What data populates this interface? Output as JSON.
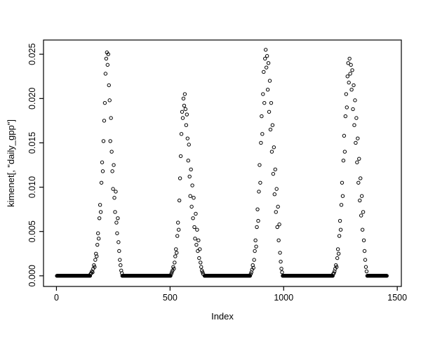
{
  "figure": {
    "background": "#ffffff",
    "foreground": "#000000"
  },
  "chart_data": {
    "type": "scatter",
    "title": "",
    "xlabel": "Index",
    "ylabel": "kimenet[, \"daily_gpp\"]",
    "marker": "open-circle",
    "grid": false,
    "legend": "none",
    "xlim": [
      -57,
      1518
    ],
    "ylim": [
      -0.0012,
      0.0266
    ],
    "x_ticks": [
      0,
      500,
      1000,
      1500
    ],
    "x_tick_labels": [
      "0",
      "500",
      "1000",
      "1500"
    ],
    "y_ticks": [
      0,
      0.005,
      0.01,
      0.015,
      0.02,
      0.025
    ],
    "y_tick_labels": [
      "0.000",
      "0.005",
      "0.010",
      "0.015",
      "0.020",
      "0.025"
    ],
    "zero_value": 0.0,
    "zero_run_step": 2,
    "zero_runs": [
      [
        2,
        148
      ],
      [
        290,
        503
      ],
      [
        652,
        853
      ],
      [
        996,
        1216
      ],
      [
        1368,
        1455
      ]
    ],
    "season_points": [
      [
        150,
        0.0002
      ],
      [
        153,
        0.0003
      ],
      [
        156,
        0.0005
      ],
      [
        159,
        0.0004
      ],
      [
        162,
        0.0008
      ],
      [
        165,
        0.0012
      ],
      [
        168,
        0.001
      ],
      [
        171,
        0.0018
      ],
      [
        174,
        0.0025
      ],
      [
        177,
        0.0022
      ],
      [
        180,
        0.0035
      ],
      [
        183,
        0.0048
      ],
      [
        186,
        0.0042
      ],
      [
        189,
        0.0065
      ],
      [
        192,
        0.008
      ],
      [
        195,
        0.0072
      ],
      [
        198,
        0.0105
      ],
      [
        201,
        0.0128
      ],
      [
        204,
        0.0118
      ],
      [
        207,
        0.0152
      ],
      [
        210,
        0.0175
      ],
      [
        213,
        0.0195
      ],
      [
        216,
        0.0228
      ],
      [
        219,
        0.0245
      ],
      [
        222,
        0.0252
      ],
      [
        225,
        0.0238
      ],
      [
        228,
        0.025
      ],
      [
        231,
        0.0215
      ],
      [
        234,
        0.0198
      ],
      [
        237,
        0.0152
      ],
      [
        240,
        0.0178
      ],
      [
        243,
        0.014
      ],
      [
        246,
        0.0118
      ],
      [
        249,
        0.0098
      ],
      [
        252,
        0.0125
      ],
      [
        255,
        0.0088
      ],
      [
        258,
        0.0072
      ],
      [
        261,
        0.0095
      ],
      [
        264,
        0.006
      ],
      [
        267,
        0.0048
      ],
      [
        270,
        0.0065
      ],
      [
        273,
        0.0038
      ],
      [
        276,
        0.0028
      ],
      [
        279,
        0.0018
      ],
      [
        282,
        0.0012
      ],
      [
        285,
        0.0006
      ],
      [
        288,
        0.0003
      ],
      [
        505,
        0.0002
      ],
      [
        508,
        0.0004
      ],
      [
        511,
        0.0006
      ],
      [
        514,
        0.001
      ],
      [
        517,
        0.0008
      ],
      [
        520,
        0.0015
      ],
      [
        523,
        0.0022
      ],
      [
        526,
        0.003
      ],
      [
        529,
        0.0026
      ],
      [
        532,
        0.0045
      ],
      [
        535,
        0.006
      ],
      [
        538,
        0.0052
      ],
      [
        541,
        0.0085
      ],
      [
        544,
        0.011
      ],
      [
        547,
        0.0135
      ],
      [
        550,
        0.016
      ],
      [
        553,
        0.0185
      ],
      [
        556,
        0.0178
      ],
      [
        559,
        0.02
      ],
      [
        562,
        0.0192
      ],
      [
        565,
        0.0205
      ],
      [
        568,
        0.0188
      ],
      [
        571,
        0.017
      ],
      [
        574,
        0.0182
      ],
      [
        577,
        0.0155
      ],
      [
        580,
        0.013
      ],
      [
        583,
        0.0148
      ],
      [
        586,
        0.0112
      ],
      [
        589,
        0.009
      ],
      [
        592,
        0.012
      ],
      [
        595,
        0.0078
      ],
      [
        598,
        0.0102
      ],
      [
        601,
        0.0065
      ],
      [
        604,
        0.0088
      ],
      [
        607,
        0.0055
      ],
      [
        610,
        0.0042
      ],
      [
        613,
        0.007
      ],
      [
        616,
        0.0035
      ],
      [
        619,
        0.0052
      ],
      [
        622,
        0.0028
      ],
      [
        625,
        0.004
      ],
      [
        628,
        0.002
      ],
      [
        631,
        0.003
      ],
      [
        634,
        0.0015
      ],
      [
        637,
        0.001
      ],
      [
        640,
        0.0006
      ],
      [
        643,
        0.0004
      ],
      [
        646,
        0.0002
      ],
      [
        855,
        0.0002
      ],
      [
        858,
        0.0004
      ],
      [
        861,
        0.0007
      ],
      [
        864,
        0.0012
      ],
      [
        867,
        0.0009
      ],
      [
        870,
        0.0018
      ],
      [
        873,
        0.0028
      ],
      [
        876,
        0.004
      ],
      [
        879,
        0.0033
      ],
      [
        882,
        0.0055
      ],
      [
        885,
        0.0075
      ],
      [
        888,
        0.0062
      ],
      [
        891,
        0.0095
      ],
      [
        894,
        0.0125
      ],
      [
        897,
        0.0105
      ],
      [
        900,
        0.015
      ],
      [
        903,
        0.018
      ],
      [
        906,
        0.016
      ],
      [
        909,
        0.0205
      ],
      [
        912,
        0.023
      ],
      [
        915,
        0.0195
      ],
      [
        918,
        0.0245
      ],
      [
        921,
        0.0255
      ],
      [
        924,
        0.0235
      ],
      [
        927,
        0.0248
      ],
      [
        930,
        0.021
      ],
      [
        933,
        0.024
      ],
      [
        936,
        0.0185
      ],
      [
        939,
        0.022
      ],
      [
        942,
        0.0165
      ],
      [
        945,
        0.0195
      ],
      [
        948,
        0.014
      ],
      [
        951,
        0.017
      ],
      [
        954,
        0.0115
      ],
      [
        957,
        0.0145
      ],
      [
        960,
        0.0092
      ],
      [
        963,
        0.012
      ],
      [
        966,
        0.0072
      ],
      [
        969,
        0.0098
      ],
      [
        972,
        0.0055
      ],
      [
        975,
        0.0078
      ],
      [
        978,
        0.004
      ],
      [
        981,
        0.0058
      ],
      [
        984,
        0.0026
      ],
      [
        987,
        0.0016
      ],
      [
        990,
        0.0008
      ],
      [
        993,
        0.0004
      ],
      [
        1218,
        0.0002
      ],
      [
        1221,
        0.0003
      ],
      [
        1224,
        0.0005
      ],
      [
        1227,
        0.0008
      ],
      [
        1230,
        0.0012
      ],
      [
        1233,
        0.001
      ],
      [
        1236,
        0.002
      ],
      [
        1239,
        0.003
      ],
      [
        1242,
        0.0025
      ],
      [
        1245,
        0.0045
      ],
      [
        1248,
        0.0062
      ],
      [
        1251,
        0.0052
      ],
      [
        1254,
        0.008
      ],
      [
        1257,
        0.0105
      ],
      [
        1260,
        0.009
      ],
      [
        1263,
        0.013
      ],
      [
        1266,
        0.0158
      ],
      [
        1269,
        0.014
      ],
      [
        1272,
        0.018
      ],
      [
        1275,
        0.0205
      ],
      [
        1278,
        0.019
      ],
      [
        1281,
        0.0225
      ],
      [
        1284,
        0.024
      ],
      [
        1287,
        0.0218
      ],
      [
        1290,
        0.0245
      ],
      [
        1293,
        0.0228
      ],
      [
        1296,
        0.0238
      ],
      [
        1299,
        0.021
      ],
      [
        1302,
        0.0232
      ],
      [
        1305,
        0.0188
      ],
      [
        1308,
        0.0215
      ],
      [
        1311,
        0.017
      ],
      [
        1314,
        0.0198
      ],
      [
        1317,
        0.015
      ],
      [
        1320,
        0.0178
      ],
      [
        1323,
        0.0128
      ],
      [
        1326,
        0.0155
      ],
      [
        1329,
        0.0105
      ],
      [
        1332,
        0.0132
      ],
      [
        1335,
        0.0085
      ],
      [
        1338,
        0.011
      ],
      [
        1341,
        0.0068
      ],
      [
        1344,
        0.009
      ],
      [
        1347,
        0.0052
      ],
      [
        1350,
        0.0072
      ],
      [
        1353,
        0.004
      ],
      [
        1356,
        0.0028
      ],
      [
        1359,
        0.0018
      ],
      [
        1362,
        0.001
      ],
      [
        1365,
        0.0005
      ]
    ]
  }
}
